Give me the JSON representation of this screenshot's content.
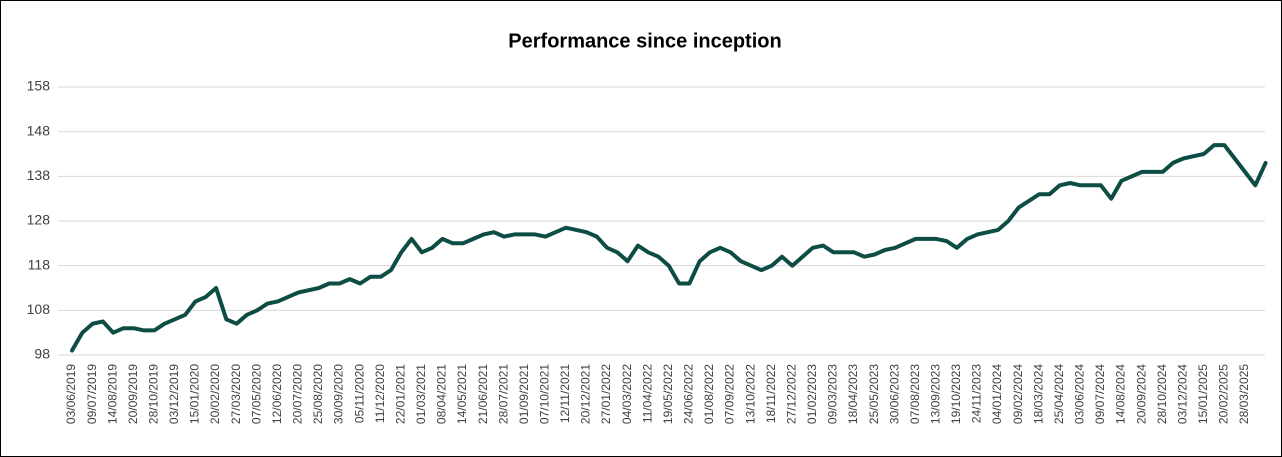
{
  "chart_data": {
    "type": "line",
    "title": "Performance since inception",
    "categories": [
      "03/06/2019",
      null,
      "09/07/2019",
      null,
      "14/08/2019",
      null,
      "20/09/2019",
      null,
      "28/10/2019",
      null,
      "03/12/2019",
      null,
      "15/01/2020",
      null,
      "20/02/2020",
      null,
      "27/03/2020",
      null,
      "07/05/2020",
      null,
      "12/06/2020",
      null,
      "20/07/2020",
      null,
      "25/08/2020",
      null,
      "30/09/2020",
      null,
      "05/11/2020",
      null,
      "11/12/2020",
      null,
      "22/01/2021",
      null,
      "01/03/2021",
      null,
      "08/04/2021",
      null,
      "14/05/2021",
      null,
      "21/06/2021",
      null,
      "28/07/2021",
      null,
      "01/09/2021",
      null,
      "07/10/2021",
      null,
      "12/11/2021",
      null,
      "20/12/2021",
      null,
      "27/01/2022",
      null,
      "04/03/2022",
      null,
      "11/04/2022",
      null,
      "19/05/2022",
      null,
      "24/06/2022",
      null,
      "01/08/2022",
      null,
      "07/09/2022",
      null,
      "13/10/2022",
      null,
      "18/11/2022",
      null,
      "27/12/2022",
      null,
      "01/02/2023",
      null,
      "09/03/2023",
      null,
      "18/04/2023",
      null,
      "25/05/2023",
      null,
      "30/06/2023",
      null,
      "07/08/2023",
      null,
      "13/09/2023",
      null,
      "19/10/2023",
      null,
      "24/11/2023",
      null,
      "04/01/2024",
      null,
      "09/02/2024",
      null,
      "18/03/2024",
      null,
      "25/04/2024",
      null,
      "03/06/2024",
      null,
      "09/07/2024",
      null,
      "14/08/2024",
      null,
      "20/09/2024",
      null,
      "28/10/2024",
      null,
      "03/12/2024",
      null,
      "15/01/2025",
      null,
      "20/02/2025",
      null,
      "28/03/2025",
      null,
      null
    ],
    "values": [
      99,
      103,
      105,
      105.5,
      103,
      104,
      104,
      103.5,
      103.5,
      105,
      106,
      107,
      110,
      111,
      113,
      106,
      105,
      107,
      108,
      109.5,
      110,
      111,
      112,
      112.5,
      113,
      114,
      114,
      115,
      114,
      115.5,
      115.5,
      117,
      121,
      124,
      121,
      122,
      124,
      123,
      123,
      124,
      125,
      125.5,
      124.5,
      125,
      125,
      125,
      124.5,
      125.5,
      126.5,
      126,
      125.5,
      124.5,
      122,
      121,
      119,
      122.5,
      121,
      120,
      118,
      114,
      114,
      119,
      121,
      122,
      121,
      119,
      118,
      117,
      118,
      120,
      118,
      120,
      122,
      122.5,
      121,
      121,
      121,
      120,
      120.5,
      121.5,
      122,
      123,
      124,
      124,
      124,
      123.5,
      122,
      124,
      125,
      125.5,
      126,
      128,
      131,
      132.5,
      134,
      134,
      136,
      136.5,
      136,
      136,
      136,
      133,
      137,
      138,
      139,
      139,
      139,
      141,
      142,
      142.5,
      143,
      145,
      145,
      142,
      139,
      136,
      141
    ],
    "color": "#0e4d45",
    "ylim": [
      98,
      158
    ],
    "yticks": [
      98,
      108,
      118,
      128,
      138,
      148,
      158
    ],
    "grid": true
  }
}
